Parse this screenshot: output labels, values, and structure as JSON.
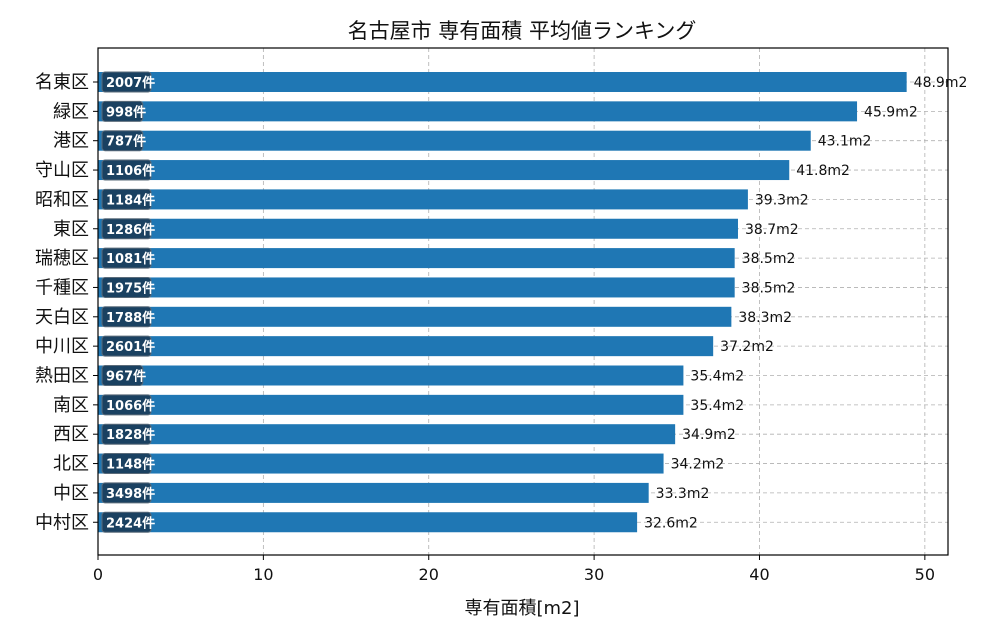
{
  "chart_data": {
    "type": "bar",
    "orientation": "horizontal",
    "title": "名古屋市 専有面積 平均値ランキング",
    "xlabel": "専有面積[m2]",
    "ylabel": "",
    "xlim": [
      0,
      51.4
    ],
    "xticks": [
      0,
      10,
      20,
      30,
      40,
      50
    ],
    "grid": true,
    "categories": [
      "名東区",
      "緑区",
      "港区",
      "守山区",
      "昭和区",
      "東区",
      "瑞穂区",
      "千種区",
      "天白区",
      "中川区",
      "熱田区",
      "南区",
      "西区",
      "北区",
      "中区",
      "中村区"
    ],
    "values": [
      48.9,
      45.9,
      43.1,
      41.8,
      39.3,
      38.7,
      38.5,
      38.5,
      38.3,
      37.2,
      35.4,
      35.4,
      34.9,
      34.2,
      33.3,
      32.6
    ],
    "value_labels": [
      "48.9m2",
      "45.9m2",
      "43.1m2",
      "41.8m2",
      "39.3m2",
      "38.7m2",
      "38.5m2",
      "38.5m2",
      "38.3m2",
      "37.2m2",
      "35.4m2",
      "35.4m2",
      "34.9m2",
      "34.2m2",
      "33.3m2",
      "32.6m2"
    ],
    "counts": [
      "2007件",
      "998件",
      "787件",
      "1106件",
      "1184件",
      "1286件",
      "1081件",
      "1975件",
      "1788件",
      "2601件",
      "967件",
      "1066件",
      "1828件",
      "1148件",
      "3498件",
      "2424件"
    ],
    "colors": {
      "bar": "#1f77b4",
      "count_box": "#1a3a55",
      "grid": "#b0b0b0",
      "axis": "#000000"
    }
  }
}
